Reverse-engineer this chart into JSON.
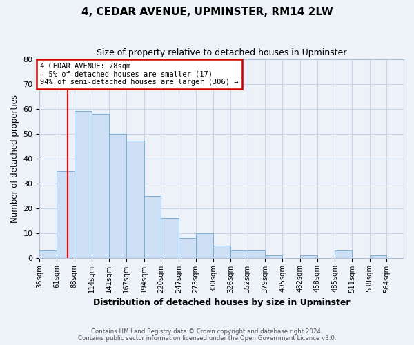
{
  "title": "4, CEDAR AVENUE, UPMINSTER, RM14 2LW",
  "subtitle": "Size of property relative to detached houses in Upminster",
  "xlabel": "Distribution of detached houses by size in Upminster",
  "ylabel": "Number of detached properties",
  "bin_labels": [
    "35sqm",
    "61sqm",
    "88sqm",
    "114sqm",
    "141sqm",
    "167sqm",
    "194sqm",
    "220sqm",
    "247sqm",
    "273sqm",
    "300sqm",
    "326sqm",
    "352sqm",
    "379sqm",
    "405sqm",
    "432sqm",
    "458sqm",
    "485sqm",
    "511sqm",
    "538sqm",
    "564sqm"
  ],
  "bar_heights": [
    3,
    35,
    59,
    58,
    50,
    47,
    25,
    16,
    8,
    10,
    5,
    3,
    3,
    1,
    0,
    1,
    0,
    3,
    0,
    1,
    0
  ],
  "bar_color": "#ccdff5",
  "bar_edge_color": "#7aafd4",
  "ylim": [
    0,
    80
  ],
  "yticks": [
    0,
    10,
    20,
    30,
    40,
    50,
    60,
    70,
    80
  ],
  "red_line_x": 78,
  "annotation_title": "4 CEDAR AVENUE: 78sqm",
  "annotation_line1": "← 5% of detached houses are smaller (17)",
  "annotation_line2": "94% of semi-detached houses are larger (306) →",
  "annotation_box_color": "#ffffff",
  "annotation_box_edge": "#cc0000",
  "grid_color": "#c8d4e8",
  "background_color": "#edf2f9",
  "footer_line1": "Contains HM Land Registry data © Crown copyright and database right 2024.",
  "footer_line2": "Contains public sector information licensed under the Open Government Licence v3.0.",
  "bin_edges": [
    35,
    61,
    88,
    114,
    141,
    167,
    194,
    220,
    247,
    273,
    300,
    326,
    352,
    379,
    405,
    432,
    458,
    485,
    511,
    538,
    564,
    590
  ]
}
